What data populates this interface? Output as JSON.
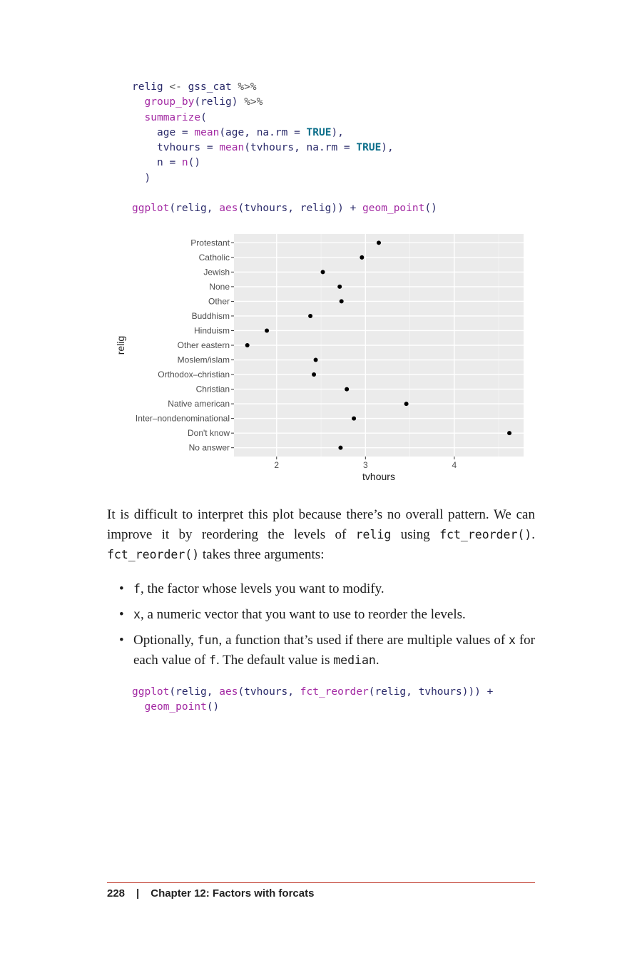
{
  "code1": {
    "l1": [
      "relig",
      " <- ",
      "gss_cat",
      " %>%"
    ],
    "l2": [
      "group_by",
      "(relig) ",
      "%>%"
    ],
    "l3": [
      "summarize",
      "("
    ],
    "l4": [
      "age = ",
      "mean",
      "(age, na.rm = ",
      "TRUE",
      "),"
    ],
    "l5": [
      "tvhours = ",
      "mean",
      "(tvhours, na.rm = ",
      "TRUE",
      "),"
    ],
    "l6": [
      "n = ",
      "n",
      "()"
    ],
    "l7": [
      ")"
    ],
    "l8": [
      "ggplot",
      "(relig, ",
      "aes",
      "(tvhours, relig)) + ",
      "geom_point",
      "()"
    ]
  },
  "chart_data": {
    "type": "scatter",
    "xlabel": "tvhours",
    "ylabel": "relig",
    "xlim": [
      1.52,
      4.78
    ],
    "xticks": [
      2,
      3,
      4
    ],
    "grid": true,
    "legend": "none",
    "categories": [
      "Protestant",
      "Catholic",
      "Jewish",
      "None",
      "Other",
      "Buddhism",
      "Hinduism",
      "Other eastern",
      "Moslem/islam",
      "Orthodox–christian",
      "Christian",
      "Native american",
      "Inter–nondenominational",
      "Don't know",
      "No answer"
    ],
    "values": [
      3.15,
      2.96,
      2.52,
      2.71,
      2.73,
      2.38,
      1.89,
      1.67,
      2.44,
      2.42,
      2.79,
      3.46,
      2.87,
      4.62,
      2.72
    ]
  },
  "para1": {
    "t1": "It is difficult to interpret this plot because there’s no overall pattern. We can improve it by reordering the levels of ",
    "c1": "relig",
    "t2": " using ",
    "c2": "fct_reorder()",
    "t3": ". ",
    "c3": "fct_reorder()",
    "t4": " takes three arguments:"
  },
  "bullets": {
    "b1_code": "f",
    "b1_text": ", the factor whose levels you want to modify.",
    "b2_code": "x",
    "b2_text": ", a numeric vector that you want to use to reorder the levels.",
    "b3_pre": "Optionally, ",
    "b3_code1": "fun",
    "b3_mid1": ", a function that’s used if there are multiple values of ",
    "b3_code2": "x",
    "b3_mid2": " for each value of ",
    "b3_code3": "f",
    "b3_mid3": ". The default value is ",
    "b3_code4": "median",
    "b3_end": "."
  },
  "code2": {
    "l1": [
      "ggplot",
      "(relig, ",
      "aes",
      "(tvhours, ",
      "fct_reorder",
      "(relig, tvhours))) +"
    ],
    "l2": [
      "geom_point",
      "()"
    ]
  },
  "footer": {
    "page_number": "228",
    "separator": "|",
    "chapter": "Chapter 12: Factors with forcats"
  }
}
